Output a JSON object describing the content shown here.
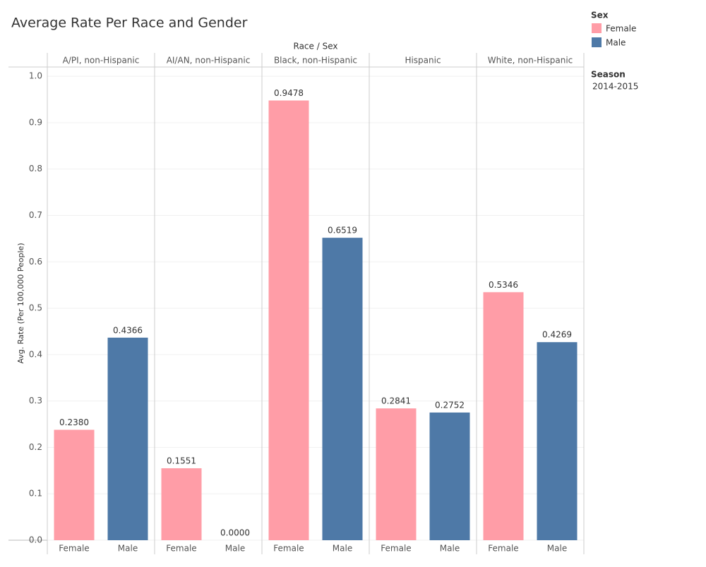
{
  "chart_data": {
    "type": "grouped_bar",
    "title": "Average Rate Per Race and Gender",
    "header": "Race / Sex",
    "ylabel": "Avg. Rate (Per 100,000 People)",
    "categories": [
      "A/PI, non-Hispanic",
      "AI/AN, non-Hispanic",
      "Black, non-Hispanic",
      "Hispanic",
      "White, non-Hispanic"
    ],
    "series": [
      {
        "name": "Female",
        "color": "#ff9da7",
        "values": [
          0.238,
          0.1551,
          0.9478,
          0.2841,
          0.5346
        ],
        "value_labels": [
          "0.2380",
          "0.1551",
          "0.9478",
          "0.2841",
          "0.5346"
        ]
      },
      {
        "name": "Male",
        "color": "#4e79a7",
        "values": [
          0.4366,
          0,
          0.6519,
          0.2752,
          0.4269
        ],
        "value_labels": [
          "0.4366",
          "0.0000",
          "0.6519",
          "0.2752",
          "0.4269"
        ]
      }
    ],
    "ylim": [
      0,
      1.02
    ],
    "yticks": [
      {
        "value": 0,
        "label": "0.0"
      },
      0.1,
      0.2,
      0.3,
      0.4,
      0.5,
      0.6,
      0.7,
      0.8,
      0.9,
      {
        "value": 1,
        "label": "1.0"
      }
    ],
    "grid": true,
    "legend_title": "Sex",
    "filter": {
      "title": "Season",
      "value": "2014-2015"
    }
  }
}
